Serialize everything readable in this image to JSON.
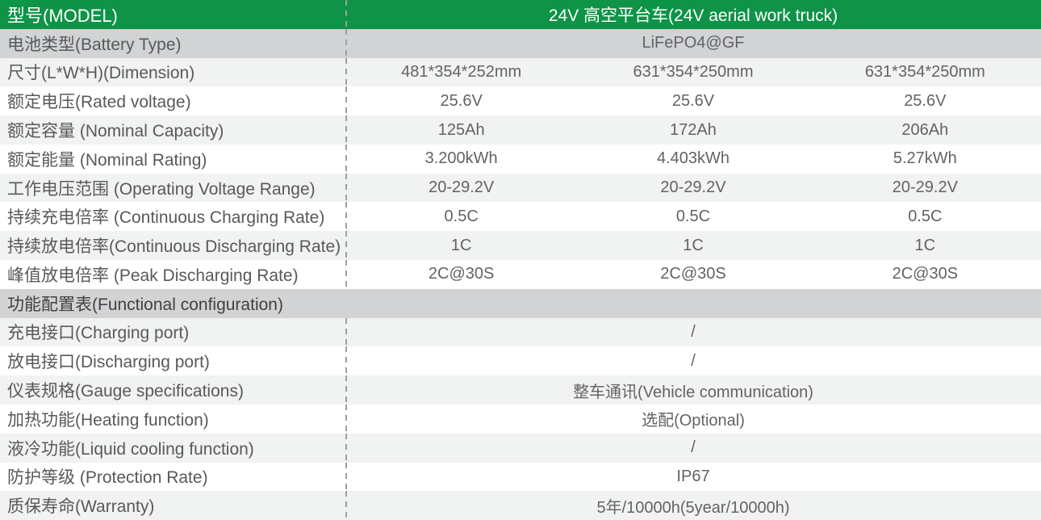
{
  "table": {
    "header": {
      "label": "型号(MODEL)",
      "value": "24V 高空平台车(24V aerial work truck)"
    },
    "rows": [
      {
        "type": "merged",
        "shade": "dark",
        "label": "电池类型(Battery Type)",
        "value": "LiFePO4@GF"
      },
      {
        "type": "triple",
        "shade": "light",
        "label": "尺寸(L*W*H)(Dimension)",
        "values": [
          "481*354*252mm",
          "631*354*250mm",
          "631*354*250mm"
        ]
      },
      {
        "type": "triple",
        "shade": "white",
        "label": "额定电压(Rated voltage)",
        "values": [
          "25.6V",
          "25.6V",
          "25.6V"
        ]
      },
      {
        "type": "triple",
        "shade": "light",
        "label": "额定容量 (Nominal Capacity)",
        "values": [
          "125Ah",
          "172Ah",
          "206Ah"
        ]
      },
      {
        "type": "triple",
        "shade": "white",
        "label": "额定能量 (Nominal Rating)",
        "values": [
          "3.200kWh",
          "4.403kWh",
          "5.27kWh"
        ]
      },
      {
        "type": "triple",
        "shade": "light",
        "label": "工作电压范围 (Operating Voltage Range)",
        "values": [
          "20-29.2V",
          "20-29.2V",
          "20-29.2V"
        ]
      },
      {
        "type": "triple",
        "shade": "white",
        "label": "持续充电倍率 (Continuous Charging Rate)",
        "values": [
          "0.5C",
          "0.5C",
          "0.5C"
        ]
      },
      {
        "type": "triple",
        "shade": "light",
        "label": "持续放电倍率(Continuous Discharging Rate)",
        "values": [
          "1C",
          "1C",
          "1C"
        ]
      },
      {
        "type": "triple",
        "shade": "white",
        "label": "峰值放电倍率 (Peak Discharging Rate)",
        "values": [
          "2C@30S",
          "2C@30S",
          "2C@30S"
        ]
      },
      {
        "type": "section",
        "shade": "dark",
        "label": "功能配置表(Functional configuration)"
      },
      {
        "type": "merged",
        "shade": "light",
        "label": "充电接口(Charging port)",
        "value": "/"
      },
      {
        "type": "merged",
        "shade": "white",
        "label": "放电接口(Discharging port)",
        "value": "/"
      },
      {
        "type": "merged",
        "shade": "light",
        "label": "仪表规格(Gauge specifications)",
        "value": "整车通讯(Vehicle communication)"
      },
      {
        "type": "merged",
        "shade": "white",
        "label": "加热功能(Heating function)",
        "value": "选配(Optional)"
      },
      {
        "type": "merged",
        "shade": "light",
        "label": "液冷功能(Liquid cooling function)",
        "value": "/"
      },
      {
        "type": "merged",
        "shade": "white",
        "label": "防护等级 (Protection Rate)",
        "value": "IP67"
      },
      {
        "type": "merged",
        "shade": "light",
        "label": "质保寿命(Warranty)",
        "value": "5年/10000h(5year/10000h)"
      }
    ]
  },
  "colors": {
    "header_green": "#0e9347",
    "section_gray": "#d1d3d4",
    "stripe_light": "#f1f2f2",
    "stripe_white": "#ffffff",
    "label_text": "#58595b",
    "value_text": "#626366",
    "header_text": "#ffffff",
    "divider_dash": "#9da0a3"
  }
}
